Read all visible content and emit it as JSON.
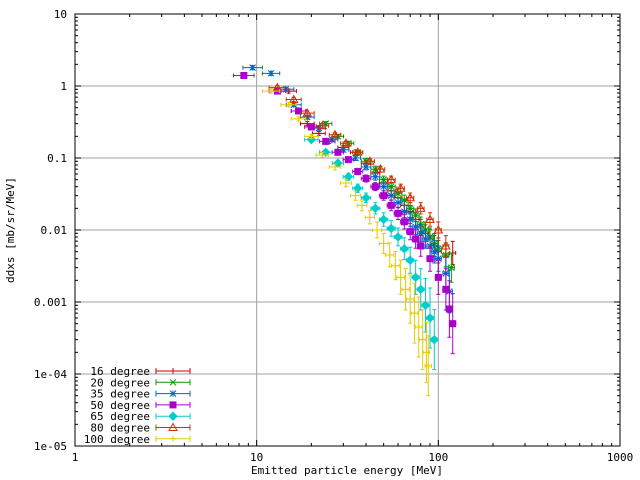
{
  "chart_data": {
    "type": "scatter",
    "xlabel": "Emitted particle energy [MeV]",
    "ylabel": "ddxs [mb/sr/MeV]",
    "xscale": "log",
    "yscale": "log",
    "xlim": [
      1,
      1000
    ],
    "ylim": [
      1e-05,
      10
    ],
    "grid": true,
    "legend_position": "bottom-left",
    "x_ticks": [
      {
        "value": 1,
        "label": "1"
      },
      {
        "value": 10,
        "label": "10"
      },
      {
        "value": 100,
        "label": "100"
      },
      {
        "value": 1000,
        "label": "1000"
      }
    ],
    "y_ticks": [
      {
        "value": 1e-05,
        "label": "1e-05"
      },
      {
        "value": 0.0001,
        "label": "1e-04"
      },
      {
        "value": 0.001,
        "label": "0.001"
      },
      {
        "value": 0.01,
        "label": "0.01"
      },
      {
        "value": 0.1,
        "label": "0.1"
      },
      {
        "value": 1,
        "label": "1"
      },
      {
        "value": 10,
        "label": "10"
      }
    ],
    "series": [
      {
        "name": "16 degree",
        "color": "#cc0000",
        "marker": "plus",
        "points": [
          [
            15,
            0.85
          ],
          [
            17,
            0.45
          ],
          [
            19,
            0.3
          ],
          [
            22,
            0.22
          ],
          [
            25,
            0.17
          ],
          [
            30,
            0.14
          ],
          [
            35,
            0.12
          ],
          [
            40,
            0.085
          ],
          [
            45,
            0.062
          ],
          [
            50,
            0.045
          ],
          [
            55,
            0.035
          ],
          [
            60,
            0.028
          ],
          [
            65,
            0.022
          ],
          [
            70,
            0.018
          ],
          [
            75,
            0.014
          ],
          [
            80,
            0.011
          ],
          [
            85,
            0.009
          ],
          [
            90,
            0.0075
          ],
          [
            95,
            0.006
          ],
          [
            100,
            0.005
          ],
          [
            110,
            0.0045
          ],
          [
            120,
            0.0048
          ]
        ]
      },
      {
        "name": "20 degree",
        "color": "#009900",
        "marker": "cross",
        "points": [
          [
            24,
            0.3
          ],
          [
            28,
            0.2
          ],
          [
            32,
            0.16
          ],
          [
            36,
            0.12
          ],
          [
            40,
            0.09
          ],
          [
            45,
            0.07
          ],
          [
            50,
            0.05
          ],
          [
            55,
            0.04
          ],
          [
            60,
            0.032
          ],
          [
            65,
            0.026
          ],
          [
            70,
            0.02
          ],
          [
            75,
            0.016
          ],
          [
            80,
            0.012
          ],
          [
            85,
            0.01
          ],
          [
            90,
            0.008
          ],
          [
            95,
            0.0065
          ],
          [
            100,
            0.0055
          ],
          [
            110,
            0.0045
          ],
          [
            118,
            0.003
          ]
        ]
      },
      {
        "name": "35 degree",
        "color": "#0066cc",
        "marker": "star",
        "points": [
          [
            9.5,
            1.8
          ],
          [
            12,
            1.5
          ],
          [
            14.5,
            0.9
          ],
          [
            16,
            0.55
          ],
          [
            19,
            0.37
          ],
          [
            22,
            0.26
          ],
          [
            26,
            0.18
          ],
          [
            30,
            0.13
          ],
          [
            35,
            0.1
          ],
          [
            40,
            0.075
          ],
          [
            45,
            0.055
          ],
          [
            50,
            0.04
          ],
          [
            55,
            0.03
          ],
          [
            60,
            0.024
          ],
          [
            65,
            0.018
          ],
          [
            70,
            0.014
          ],
          [
            75,
            0.011
          ],
          [
            80,
            0.009
          ],
          [
            85,
            0.0075
          ],
          [
            90,
            0.006
          ],
          [
            95,
            0.005
          ],
          [
            100,
            0.004
          ],
          [
            110,
            0.0025
          ],
          [
            115,
            0.0014
          ]
        ]
      },
      {
        "name": "50 degree",
        "color": "#aa00cc",
        "marker": "square",
        "points": [
          [
            8.5,
            1.4
          ],
          [
            13,
            0.85
          ],
          [
            17,
            0.45
          ],
          [
            20,
            0.27
          ],
          [
            24,
            0.17
          ],
          [
            28,
            0.12
          ],
          [
            32,
            0.095
          ],
          [
            36,
            0.065
          ],
          [
            40,
            0.052
          ],
          [
            45,
            0.04
          ],
          [
            50,
            0.03
          ],
          [
            55,
            0.022
          ],
          [
            60,
            0.017
          ],
          [
            65,
            0.013
          ],
          [
            70,
            0.0095
          ],
          [
            75,
            0.0075
          ],
          [
            80,
            0.006
          ],
          [
            90,
            0.004
          ],
          [
            100,
            0.0022
          ],
          [
            110,
            0.0015
          ],
          [
            115,
            0.0008
          ],
          [
            120,
            0.0005
          ]
        ]
      },
      {
        "name": "65 degree",
        "color": "#00cccc",
        "marker": "diamond",
        "points": [
          [
            20,
            0.18
          ],
          [
            24,
            0.12
          ],
          [
            28,
            0.085
          ],
          [
            32,
            0.055
          ],
          [
            36,
            0.038
          ],
          [
            40,
            0.028
          ],
          [
            45,
            0.02
          ],
          [
            50,
            0.014
          ],
          [
            55,
            0.0105
          ],
          [
            60,
            0.008
          ],
          [
            65,
            0.0055
          ],
          [
            70,
            0.0038
          ],
          [
            75,
            0.0022
          ],
          [
            80,
            0.0015
          ],
          [
            85,
            0.0009
          ],
          [
            90,
            0.0006
          ],
          [
            95,
            0.0003
          ]
        ]
      },
      {
        "name": "80 degree",
        "color": "#cc3300",
        "marker": "triangle",
        "points": [
          [
            13,
            0.95
          ],
          [
            16,
            0.65
          ],
          [
            19,
            0.42
          ],
          [
            23,
            0.28
          ],
          [
            27,
            0.21
          ],
          [
            31,
            0.16
          ],
          [
            36,
            0.12
          ],
          [
            42,
            0.09
          ],
          [
            48,
            0.07
          ],
          [
            55,
            0.05
          ],
          [
            62,
            0.038
          ],
          [
            70,
            0.028
          ],
          [
            80,
            0.02
          ],
          [
            90,
            0.014
          ],
          [
            100,
            0.01
          ],
          [
            110,
            0.006
          ]
        ]
      },
      {
        "name": "100 degree",
        "color": "#e6cc00",
        "marker": "plus",
        "points": [
          [
            12,
            0.85
          ],
          [
            15,
            0.55
          ],
          [
            17,
            0.35
          ],
          [
            20,
            0.2
          ],
          [
            23,
            0.11
          ],
          [
            27,
            0.075
          ],
          [
            31,
            0.045
          ],
          [
            35,
            0.03
          ],
          [
            38,
            0.022
          ],
          [
            42,
            0.015
          ],
          [
            46,
            0.01
          ],
          [
            50,
            0.0065
          ],
          [
            54,
            0.0045
          ],
          [
            58,
            0.0032
          ],
          [
            62,
            0.0022
          ],
          [
            66,
            0.0015
          ],
          [
            70,
            0.0011
          ],
          [
            74,
            0.0007
          ],
          [
            78,
            0.00045
          ],
          [
            82,
            0.0003
          ],
          [
            86,
            0.0002
          ],
          [
            88,
            0.00013
          ]
        ]
      }
    ]
  }
}
